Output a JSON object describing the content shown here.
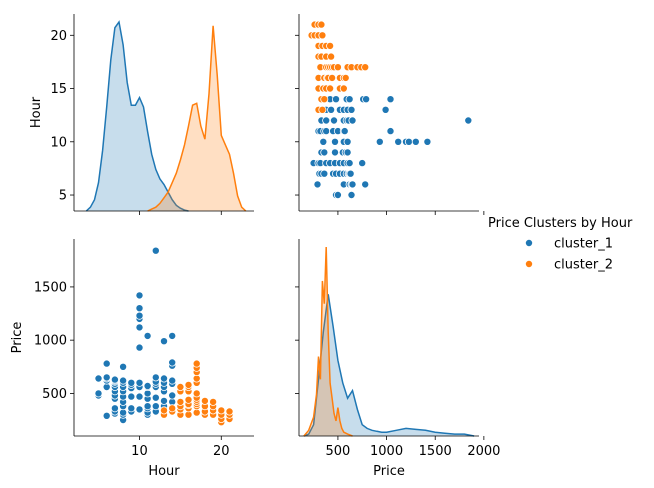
{
  "chart_data": {
    "type": "scatter",
    "title": "",
    "variables": [
      "Hour",
      "Price"
    ],
    "legend": {
      "title": "Price Clusters by Hour",
      "placement": "right",
      "entries": [
        {
          "name": "cluster_1",
          "color": "#1f77b4"
        },
        {
          "name": "cluster_2",
          "color": "#ff7f0e"
        }
      ]
    },
    "axes": {
      "hour": {
        "label": "Hour",
        "lim": [
          2,
          24
        ],
        "ticks": [
          10,
          20
        ],
        "diag_ticks": [
          5,
          10,
          15,
          20
        ]
      },
      "price": {
        "label": "Price",
        "lim": [
          100,
          1950
        ],
        "ticks": [
          500,
          1000,
          1500,
          2000
        ],
        "y_ticks": [
          500,
          1000,
          1500
        ]
      }
    },
    "series": [
      {
        "name": "cluster_1",
        "color": "#1f77b4",
        "points": [
          [
            5,
            480
          ],
          [
            5,
            500
          ],
          [
            5,
            640
          ],
          [
            6,
            290
          ],
          [
            6,
            560
          ],
          [
            6,
            620
          ],
          [
            6,
            640
          ],
          [
            6,
            650
          ],
          [
            6,
            780
          ],
          [
            7,
            310
          ],
          [
            7,
            330
          ],
          [
            7,
            360
          ],
          [
            7,
            450
          ],
          [
            7,
            480
          ],
          [
            7,
            520
          ],
          [
            7,
            560
          ],
          [
            7,
            590
          ],
          [
            7,
            610
          ],
          [
            7,
            620
          ],
          [
            7,
            630
          ],
          [
            8,
            250
          ],
          [
            8,
            300
          ],
          [
            8,
            320
          ],
          [
            8,
            380
          ],
          [
            8,
            420
          ],
          [
            8,
            470
          ],
          [
            8,
            520
          ],
          [
            8,
            560
          ],
          [
            8,
            600
          ],
          [
            8,
            620
          ],
          [
            8,
            750
          ],
          [
            9,
            330
          ],
          [
            9,
            360
          ],
          [
            9,
            470
          ],
          [
            9,
            550
          ],
          [
            9,
            580
          ],
          [
            9,
            600
          ],
          [
            10,
            350
          ],
          [
            10,
            470
          ],
          [
            10,
            560
          ],
          [
            10,
            600
          ],
          [
            10,
            930
          ],
          [
            10,
            1120
          ],
          [
            10,
            1200
          ],
          [
            10,
            1230
          ],
          [
            10,
            1300
          ],
          [
            10,
            1420
          ],
          [
            11,
            300
          ],
          [
            11,
            320
          ],
          [
            11,
            360
          ],
          [
            11,
            380
          ],
          [
            11,
            450
          ],
          [
            11,
            500
          ],
          [
            11,
            560
          ],
          [
            11,
            570
          ],
          [
            11,
            1040
          ],
          [
            12,
            330
          ],
          [
            12,
            380
          ],
          [
            12,
            460
          ],
          [
            12,
            560
          ],
          [
            12,
            590
          ],
          [
            12,
            610
          ],
          [
            12,
            650
          ],
          [
            12,
            1840
          ],
          [
            13,
            380
          ],
          [
            13,
            430
          ],
          [
            13,
            520
          ],
          [
            13,
            560
          ],
          [
            13,
            600
          ],
          [
            13,
            640
          ],
          [
            13,
            990
          ],
          [
            14,
            350
          ],
          [
            14,
            420
          ],
          [
            14,
            480
          ],
          [
            14,
            590
          ],
          [
            14,
            620
          ],
          [
            14,
            760
          ],
          [
            14,
            790
          ],
          [
            14,
            1040
          ]
        ]
      },
      {
        "name": "cluster_2",
        "color": "#ff7f0e",
        "points": [
          [
            13,
            300
          ],
          [
            13,
            340
          ],
          [
            14,
            330
          ],
          [
            14,
            360
          ],
          [
            15,
            300
          ],
          [
            15,
            350
          ],
          [
            15,
            380
          ],
          [
            15,
            420
          ],
          [
            15,
            520
          ],
          [
            15,
            560
          ],
          [
            16,
            300
          ],
          [
            16,
            360
          ],
          [
            16,
            390
          ],
          [
            16,
            400
          ],
          [
            16,
            440
          ],
          [
            16,
            520
          ],
          [
            16,
            560
          ],
          [
            16,
            580
          ],
          [
            17,
            320
          ],
          [
            17,
            380
          ],
          [
            17,
            400
          ],
          [
            17,
            420
          ],
          [
            17,
            440
          ],
          [
            17,
            460
          ],
          [
            17,
            500
          ],
          [
            17,
            600
          ],
          [
            17,
            640
          ],
          [
            17,
            700
          ],
          [
            17,
            740
          ],
          [
            17,
            780
          ],
          [
            18,
            300
          ],
          [
            18,
            330
          ],
          [
            18,
            380
          ],
          [
            18,
            430
          ],
          [
            19,
            300
          ],
          [
            19,
            340
          ],
          [
            19,
            380
          ],
          [
            19,
            420
          ],
          [
            20,
            230
          ],
          [
            20,
            260
          ],
          [
            20,
            300
          ],
          [
            20,
            340
          ],
          [
            21,
            260
          ],
          [
            21,
            300
          ],
          [
            21,
            330
          ]
        ]
      }
    ],
    "kde": {
      "hour": {
        "cluster_1": {
          "x": [
            3.5,
            4,
            4.5,
            5,
            5.5,
            6,
            6.5,
            7,
            7.5,
            8,
            8.5,
            9,
            9.5,
            10,
            10.5,
            11,
            11.5,
            12,
            12.5,
            13,
            13.5,
            14,
            14.5,
            15,
            15.5,
            16
          ],
          "y": [
            0,
            0.02,
            0.06,
            0.15,
            0.32,
            0.55,
            0.8,
            0.97,
            1.0,
            0.88,
            0.68,
            0.56,
            0.56,
            0.6,
            0.55,
            0.42,
            0.3,
            0.22,
            0.17,
            0.14,
            0.1,
            0.06,
            0.03,
            0.015,
            0.005,
            0
          ]
        },
        "cluster_2": {
          "x": [
            11,
            11.5,
            12,
            12.5,
            13,
            13.5,
            14,
            14.5,
            15,
            15.5,
            16,
            16.5,
            17,
            17.5,
            18,
            18.5,
            19,
            19.5,
            20,
            20.5,
            21,
            21.5,
            22,
            22.5,
            23
          ],
          "y": [
            0,
            0.01,
            0.02,
            0.04,
            0.07,
            0.1,
            0.15,
            0.2,
            0.27,
            0.35,
            0.45,
            0.56,
            0.57,
            0.45,
            0.38,
            0.62,
            0.98,
            0.72,
            0.4,
            0.35,
            0.3,
            0.2,
            0.08,
            0.02,
            0
          ]
        }
      },
      "price": {
        "cluster_1": {
          "x": [
            150,
            200,
            250,
            300,
            350,
            400,
            450,
            500,
            550,
            600,
            650,
            700,
            750,
            800,
            850,
            900,
            950,
            1000,
            1100,
            1200,
            1300,
            1400,
            1500,
            1600,
            1700,
            1800,
            1900
          ],
          "y": [
            0,
            0.01,
            0.06,
            0.3,
            0.55,
            0.75,
            0.58,
            0.4,
            0.28,
            0.2,
            0.24,
            0.14,
            0.06,
            0.04,
            0.03,
            0.025,
            0.02,
            0.02,
            0.03,
            0.04,
            0.035,
            0.03,
            0.02,
            0.015,
            0.01,
            0.01,
            0
          ]
        },
        "cluster_2": {
          "x": [
            150,
            200,
            250,
            280,
            300,
            320,
            340,
            360,
            380,
            400,
            420,
            440,
            460,
            480,
            500,
            520,
            540,
            560,
            600,
            650
          ],
          "y": [
            0,
            0.03,
            0.1,
            0.22,
            0.42,
            0.3,
            0.82,
            0.7,
            1.0,
            0.55,
            0.28,
            0.2,
            0.12,
            0.08,
            0.15,
            0.08,
            0.04,
            0.02,
            0.01,
            0
          ]
        }
      }
    }
  }
}
